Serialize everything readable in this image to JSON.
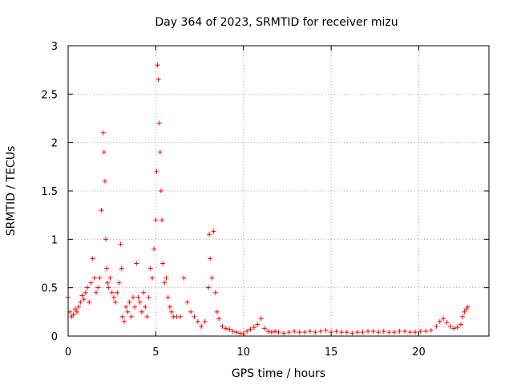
{
  "chart_data": {
    "type": "scatter",
    "title": "Day 364 of 2023, SRMTID for receiver mizu",
    "xlabel": "GPS time / hours",
    "ylabel": "SRMTID / TECUs",
    "xlim": [
      0,
      24
    ],
    "ylim": [
      0,
      3
    ],
    "xticks": [
      0,
      5,
      10,
      15,
      20
    ],
    "xtick_labels": [
      "0",
      "5",
      "10",
      "15",
      "20"
    ],
    "yticks": [
      0,
      0.5,
      1,
      1.5,
      2,
      2.5,
      3
    ],
    "ytick_labels": [
      "0",
      "0.5",
      "1",
      "1.5",
      "2",
      "2.5",
      "3"
    ],
    "grid": true,
    "marker": "+",
    "series": [
      {
        "name": "SRMTID",
        "color": "#ff0000",
        "x": [
          0.0,
          0.1,
          0.2,
          0.3,
          0.4,
          0.5,
          0.6,
          0.7,
          0.8,
          0.9,
          1.0,
          1.1,
          1.2,
          1.3,
          1.4,
          1.5,
          1.6,
          1.7,
          1.8,
          1.9,
          2.0,
          2.05,
          2.1,
          2.15,
          2.2,
          2.25,
          2.3,
          2.4,
          2.5,
          2.6,
          2.7,
          2.8,
          2.9,
          3.0,
          3.05,
          3.1,
          3.2,
          3.3,
          3.4,
          3.5,
          3.6,
          3.7,
          3.8,
          3.9,
          4.0,
          4.1,
          4.2,
          4.3,
          4.4,
          4.5,
          4.6,
          4.7,
          4.8,
          4.9,
          5.0,
          5.05,
          5.1,
          5.15,
          5.2,
          5.25,
          5.3,
          5.35,
          5.4,
          5.5,
          5.6,
          5.7,
          5.8,
          5.9,
          6.0,
          6.2,
          6.4,
          6.6,
          6.8,
          7.0,
          7.2,
          7.4,
          7.6,
          7.8,
          8.0,
          8.05,
          8.1,
          8.2,
          8.3,
          8.4,
          8.5,
          8.6,
          8.8,
          9.0,
          9.2,
          9.4,
          9.6,
          9.8,
          10.0,
          10.2,
          10.4,
          10.6,
          10.8,
          11.0,
          11.2,
          11.4,
          11.6,
          11.8,
          12.0,
          12.3,
          12.6,
          12.9,
          13.2,
          13.5,
          13.8,
          14.1,
          14.4,
          14.7,
          15.0,
          15.3,
          15.6,
          15.9,
          16.2,
          16.5,
          16.8,
          17.1,
          17.4,
          17.7,
          18.0,
          18.3,
          18.6,
          18.9,
          19.2,
          19.5,
          19.8,
          20.1,
          20.4,
          20.7,
          21.0,
          21.2,
          21.4,
          21.6,
          21.8,
          22.0,
          22.2,
          22.4,
          22.5,
          22.6,
          22.7,
          22.8
        ],
        "y": [
          0.4,
          0.25,
          0.2,
          0.22,
          0.28,
          0.25,
          0.3,
          0.35,
          0.42,
          0.38,
          0.45,
          0.5,
          0.35,
          0.55,
          0.8,
          0.6,
          0.45,
          0.5,
          0.6,
          1.3,
          2.1,
          1.9,
          1.6,
          1.0,
          0.7,
          0.55,
          0.5,
          0.6,
          0.45,
          0.4,
          0.35,
          0.45,
          0.55,
          0.95,
          0.7,
          0.2,
          0.15,
          0.3,
          0.25,
          0.35,
          0.2,
          0.4,
          0.3,
          0.75,
          0.4,
          0.35,
          0.25,
          0.45,
          0.3,
          0.2,
          0.4,
          0.7,
          0.6,
          0.9,
          1.2,
          1.7,
          2.8,
          2.65,
          2.2,
          1.9,
          1.5,
          1.2,
          0.75,
          0.55,
          0.6,
          0.4,
          0.3,
          0.25,
          0.2,
          0.2,
          0.2,
          0.6,
          0.35,
          0.25,
          0.2,
          0.15,
          0.1,
          0.15,
          0.5,
          1.05,
          0.8,
          0.6,
          1.08,
          0.45,
          0.25,
          0.18,
          0.1,
          0.08,
          0.07,
          0.05,
          0.04,
          0.03,
          0.02,
          0.05,
          0.07,
          0.09,
          0.12,
          0.18,
          0.08,
          0.05,
          0.04,
          0.05,
          0.04,
          0.03,
          0.04,
          0.05,
          0.04,
          0.04,
          0.05,
          0.04,
          0.05,
          0.06,
          0.04,
          0.05,
          0.04,
          0.04,
          0.03,
          0.04,
          0.04,
          0.05,
          0.05,
          0.04,
          0.05,
          0.04,
          0.04,
          0.05,
          0.05,
          0.04,
          0.04,
          0.05,
          0.05,
          0.06,
          0.1,
          0.15,
          0.18,
          0.14,
          0.1,
          0.08,
          0.09,
          0.12,
          0.2,
          0.25,
          0.28,
          0.3
        ]
      }
    ]
  }
}
